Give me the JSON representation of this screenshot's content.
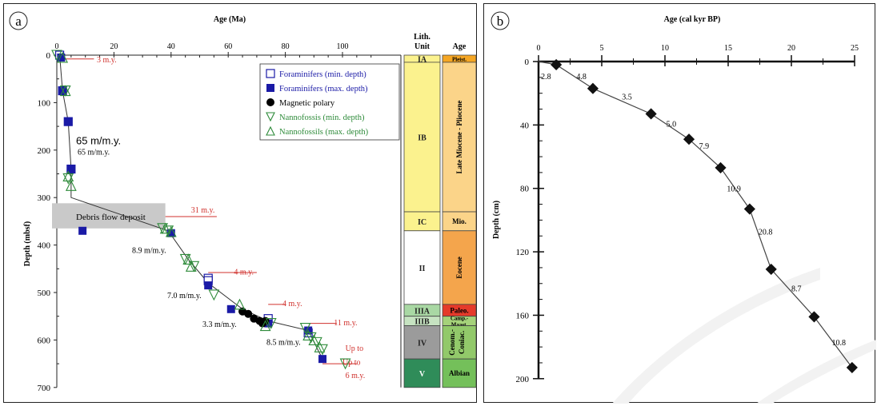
{
  "panel_a": {
    "letter": "a",
    "x_label": "Age (Ma)",
    "y_label": "Depth (mbsf)",
    "x_ticks": [
      0,
      20,
      40,
      60,
      80,
      100
    ],
    "y_ticks": [
      0,
      100,
      200,
      300,
      400,
      500,
      600,
      700
    ],
    "legend": [
      {
        "label": "Foraminifers (min. depth)",
        "symbol": "open-square",
        "color": "#1a1aa6"
      },
      {
        "label": "Foraminifers (max. depth)",
        "symbol": "filled-square",
        "color": "#1a1aa6"
      },
      {
        "label": "Magnetic polary",
        "symbol": "filled-circle",
        "color": "#000000"
      },
      {
        "label": "Nannofossis (min. depth)",
        "symbol": "triangle-down",
        "color": "#2e8b3a"
      },
      {
        "label": "Nannofossils (max. depth)",
        "symbol": "triangle-up",
        "color": "#2e8b3a"
      }
    ],
    "rate_big": "65 m/m.y.",
    "debris_label": "Debris flow deposit",
    "rate_labels": [
      "65 m/m.y.",
      "8.9 m/m.y.",
      "7.0 m/m.y.",
      "3.3 m/m.y.",
      "8.5 m/m.y."
    ],
    "hiatus_labels": [
      "3 m.y.",
      "31 m.y.",
      "4 m.y.",
      "4 m.y.",
      "11 m.y.",
      "Up to",
      "Up to",
      "6 m.y."
    ],
    "lith_header": [
      "Lith.",
      "Unit"
    ],
    "age_header": "Age",
    "lith_units": [
      "IA",
      "IB",
      "IC",
      "II",
      "IIIA",
      "IIIB",
      "IV",
      "V"
    ],
    "age_units": [
      "Pleist.",
      "Late Miocene - Pliocene",
      "Mio.",
      "Eocene",
      "Paleo.",
      "Camp.- Maast.",
      "Cenom.- Coniac.",
      "Albian"
    ],
    "colors": {
      "red": "#d0312d",
      "blue": "#1a1aa6",
      "green": "#2e8b3a"
    }
  },
  "panel_b": {
    "letter": "b",
    "x_label": "Age (cal kyr BP)",
    "y_label": "Depth (cm)",
    "x_ticks": [
      0,
      5,
      10,
      15,
      20,
      25
    ],
    "y_ticks": [
      0,
      40,
      80,
      120,
      160,
      200
    ],
    "segment_labels": [
      "2.8",
      "4.8",
      "3.5",
      "5.0",
      "7.9",
      "10.9",
      "20.8",
      "8.7",
      "10.8"
    ]
  },
  "chart_data": [
    {
      "type": "scatter",
      "panel": "a",
      "xlabel": "Age (Ma)",
      "ylabel": "Depth (mbsf)",
      "xlim": [
        0,
        110
      ],
      "ylim": [
        700,
        0
      ],
      "series": [
        {
          "name": "Foraminifers (min. depth)",
          "x": [
            1,
            2,
            4,
            5,
            53,
            53,
            74,
            88
          ],
          "y": [
            0,
            75,
            140,
            240,
            470,
            475,
            555,
            585
          ]
        },
        {
          "name": "Foraminifers (max. depth)",
          "x": [
            1.5,
            2,
            4,
            5,
            9,
            40,
            53,
            61,
            74,
            88,
            93
          ],
          "y": [
            5,
            75,
            140,
            240,
            370,
            375,
            485,
            535,
            565,
            580,
            640
          ]
        },
        {
          "name": "Magnetic polary",
          "x": [
            65,
            67,
            69,
            71,
            72,
            73
          ],
          "y": [
            540,
            545,
            555,
            560,
            565,
            560
          ]
        },
        {
          "name": "Nannofossis (min. depth)",
          "x": [
            0,
            3,
            4,
            37,
            39,
            45,
            48,
            55,
            75,
            87,
            89,
            91,
            93,
            101
          ],
          "y": [
            0,
            75,
            260,
            365,
            370,
            430,
            445,
            505,
            565,
            575,
            595,
            605,
            620,
            650
          ]
        },
        {
          "name": "Nannofossils (max. depth)",
          "x": [
            2,
            3,
            4,
            5,
            38,
            40,
            46,
            47,
            64,
            73,
            88,
            90,
            92
          ],
          "y": [
            5,
            75,
            255,
            275,
            365,
            372,
            430,
            445,
            525,
            570,
            590,
            600,
            615
          ]
        }
      ],
      "rates": [
        "65 m/m.y.",
        "8.9 m/m.y.",
        "7.0 m/m.y.",
        "3.3 m/m.y.",
        "8.5 m/m.y."
      ],
      "hiatuses": [
        "3 m.y.",
        "31 m.y.",
        "4 m.y.",
        "4 m.y.",
        "11 m.y.",
        "Up to 6 m.y."
      ]
    },
    {
      "type": "line",
      "panel": "b",
      "xlabel": "Age (cal kyr BP)",
      "ylabel": "Depth (cm)",
      "xlim": [
        0,
        25
      ],
      "ylim": [
        200,
        0
      ],
      "series": [
        {
          "x": [
            0,
            1.4,
            4.3,
            8.9,
            11.9,
            14.4,
            16.7,
            18.4,
            21.8,
            24.8
          ],
          "y": [
            0,
            2,
            17,
            33,
            49,
            67,
            93,
            131,
            161,
            193
          ]
        }
      ],
      "segment_rates": [
        "2.8",
        "4.8",
        "3.5",
        "5.0",
        "7.9",
        "10.9",
        "20.8",
        "8.7",
        "10.8"
      ]
    }
  ]
}
